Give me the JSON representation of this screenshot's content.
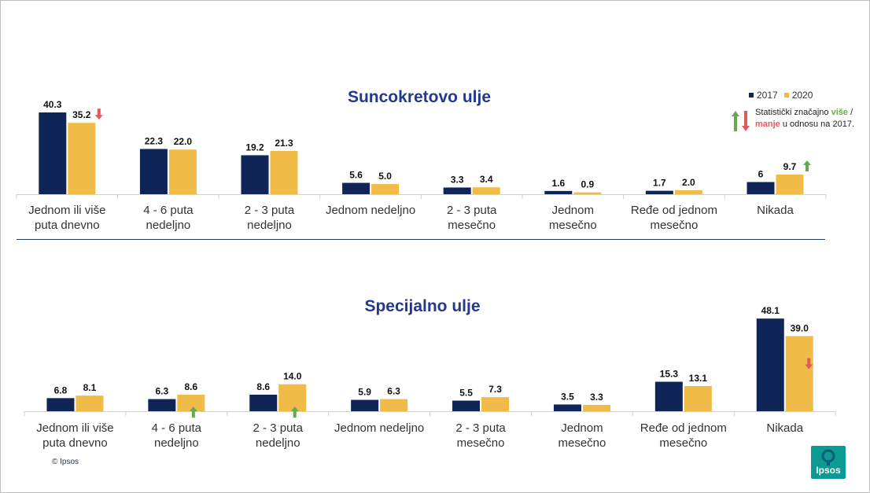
{
  "legend": {
    "items": [
      {
        "label": "2017",
        "color": "#0f2557"
      },
      {
        "label": "2020",
        "color": "#f0bb47"
      }
    ]
  },
  "significance_note": {
    "prefix": "Statistički značajno",
    "up_word": "više",
    "separator": "/",
    "down_word": "manje",
    "suffix": "u odnosu na 2017.",
    "up_color": "#6aa84f",
    "down_color": "#e05c5c"
  },
  "copyright": "© Ipsos",
  "logo_text": "Ipsos",
  "chart_data": [
    {
      "type": "bar",
      "title": "Suncokretovo ulje",
      "categories": [
        [
          "Jednom ili više",
          "puta dnevno"
        ],
        [
          "4 - 6 puta",
          "nedeljno"
        ],
        [
          "2 - 3 puta",
          "nedeljno"
        ],
        [
          "Jednom nedeljno"
        ],
        [
          "2 - 3 puta",
          "mesečno"
        ],
        [
          "Jednom",
          "mesečno"
        ],
        [
          "Ređe od jednom",
          "mesečno"
        ],
        [
          "Nikada"
        ]
      ],
      "series": [
        {
          "name": "2017",
          "values": [
            40.3,
            22.3,
            19.2,
            5.6,
            3.3,
            1.6,
            1.7,
            6
          ]
        },
        {
          "name": "2020",
          "values": [
            35.2,
            22.0,
            21.3,
            5.0,
            3.4,
            0.9,
            2.0,
            9.7
          ]
        }
      ],
      "value_labels": {
        "2017": [
          "40.3",
          "22.3",
          "19.2",
          "5.6",
          "3.3",
          "1.6",
          "1.7",
          "6"
        ],
        "2020": [
          "35.2",
          "22.0",
          "21.3",
          "5.0",
          "3.4",
          "0.9",
          "2.0",
          "9.7"
        ]
      },
      "significance": [
        "down",
        null,
        null,
        null,
        null,
        null,
        null,
        "up"
      ],
      "ylim": [
        0,
        50
      ]
    },
    {
      "type": "bar",
      "title": "Specijalno ulje",
      "categories": [
        [
          "Jednom ili više",
          "puta dnevno"
        ],
        [
          "4 - 6 puta",
          "nedeljno"
        ],
        [
          "2 - 3 puta",
          "nedeljno"
        ],
        [
          "Jednom nedeljno"
        ],
        [
          "2 - 3 puta",
          "mesečno"
        ],
        [
          "Jednom",
          "mesečno"
        ],
        [
          "Ređe od jednom",
          "mesečno"
        ],
        [
          "Nikada"
        ]
      ],
      "series": [
        {
          "name": "2017",
          "values": [
            6.8,
            6.3,
            8.6,
            5.9,
            5.5,
            3.5,
            15.3,
            48.1
          ]
        },
        {
          "name": "2020",
          "values": [
            8.1,
            8.6,
            14.0,
            6.3,
            7.3,
            3.3,
            13.1,
            39.0
          ]
        }
      ],
      "value_labels": {
        "2017": [
          "6.8",
          "6.3",
          "8.6",
          "5.9",
          "5.5",
          "3.5",
          "15.3",
          "48.1"
        ],
        "2020": [
          "8.1",
          "8.6",
          "14.0",
          "6.3",
          "7.3",
          "3.3",
          "13.1",
          "39.0"
        ]
      },
      "significance": [
        null,
        "up",
        "up",
        null,
        null,
        null,
        null,
        "down"
      ],
      "ylim": [
        0,
        50
      ]
    }
  ]
}
